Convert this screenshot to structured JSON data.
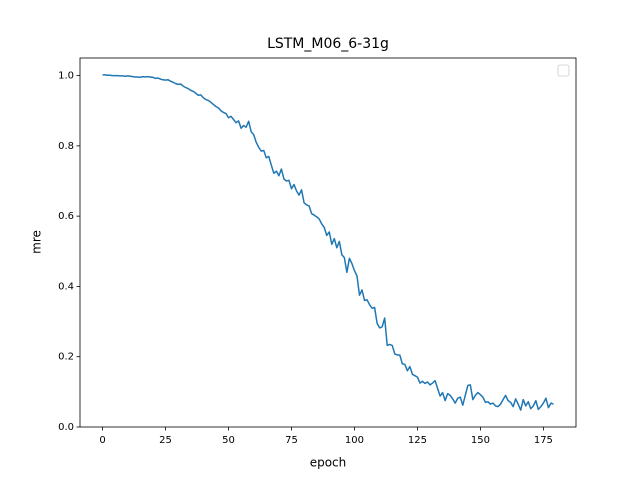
{
  "chart_data": {
    "type": "line",
    "title": "LSTM_M06_6-31g",
    "xlabel": "epoch",
    "ylabel": "mre",
    "x": [
      0,
      1,
      2,
      3,
      4,
      5,
      6,
      7,
      8,
      9,
      10,
      11,
      12,
      13,
      14,
      15,
      16,
      17,
      18,
      19,
      20,
      21,
      22,
      23,
      24,
      25,
      26,
      27,
      28,
      29,
      30,
      31,
      32,
      33,
      34,
      35,
      36,
      37,
      38,
      39,
      40,
      41,
      42,
      43,
      44,
      45,
      46,
      47,
      48,
      49,
      50,
      51,
      52,
      53,
      54,
      55,
      56,
      57,
      58,
      59,
      60,
      61,
      62,
      63,
      64,
      65,
      66,
      67,
      68,
      69,
      70,
      71,
      72,
      73,
      74,
      75,
      76,
      77,
      78,
      79,
      80,
      81,
      82,
      83,
      84,
      85,
      86,
      87,
      88,
      89,
      90,
      91,
      92,
      93,
      94,
      95,
      96,
      97,
      98,
      99,
      100,
      101,
      102,
      103,
      104,
      105,
      106,
      107,
      108,
      109,
      110,
      111,
      112,
      113,
      114,
      115,
      116,
      117,
      118,
      119,
      120,
      121,
      122,
      123,
      124,
      125,
      126,
      127,
      128,
      129,
      130,
      131,
      132,
      133,
      134,
      135,
      136,
      137,
      138,
      139,
      140,
      141,
      142,
      143,
      144,
      145,
      146,
      147,
      148,
      149,
      150,
      151,
      152,
      153,
      154,
      155,
      156,
      157,
      158,
      159,
      160,
      161,
      162,
      163,
      164,
      165,
      166,
      167,
      168,
      169,
      170,
      171,
      172,
      173,
      174,
      175,
      176,
      177,
      178,
      179
    ],
    "series": [
      {
        "color": "#1f77b4",
        "values": [
          1.002,
          1.002,
          1.001,
          1.001,
          1.0,
          1.0,
          1.0,
          0.999,
          0.999,
          0.998,
          0.999,
          0.998,
          0.997,
          0.996,
          0.996,
          0.995,
          0.997,
          0.996,
          0.997,
          0.996,
          0.995,
          0.992,
          0.993,
          0.99,
          0.988,
          0.987,
          0.988,
          0.984,
          0.981,
          0.977,
          0.975,
          0.976,
          0.97,
          0.966,
          0.963,
          0.958,
          0.955,
          0.95,
          0.944,
          0.945,
          0.937,
          0.932,
          0.929,
          0.924,
          0.918,
          0.912,
          0.908,
          0.9,
          0.895,
          0.892,
          0.88,
          0.884,
          0.875,
          0.866,
          0.871,
          0.85,
          0.858,
          0.853,
          0.87,
          0.84,
          0.832,
          0.81,
          0.796,
          0.785,
          0.787,
          0.766,
          0.77,
          0.745,
          0.722,
          0.728,
          0.715,
          0.734,
          0.706,
          0.7,
          0.702,
          0.678,
          0.69,
          0.672,
          0.66,
          0.675,
          0.638,
          0.632,
          0.629,
          0.607,
          0.603,
          0.598,
          0.592,
          0.578,
          0.568,
          0.545,
          0.555,
          0.52,
          0.536,
          0.51,
          0.528,
          0.49,
          0.482,
          0.44,
          0.48,
          0.465,
          0.445,
          0.43,
          0.375,
          0.39,
          0.36,
          0.362,
          0.348,
          0.338,
          0.34,
          0.295,
          0.282,
          0.285,
          0.31,
          0.232,
          0.235,
          0.232,
          0.208,
          0.205,
          0.205,
          0.18,
          0.178,
          0.16,
          0.172,
          0.15,
          0.146,
          0.142,
          0.125,
          0.13,
          0.124,
          0.128,
          0.12,
          0.125,
          0.132,
          0.11,
          0.088,
          0.098,
          0.075,
          0.095,
          0.09,
          0.08,
          0.068,
          0.082,
          0.085,
          0.062,
          0.09,
          0.118,
          0.12,
          0.078,
          0.09,
          0.098,
          0.092,
          0.085,
          0.07,
          0.072,
          0.065,
          0.068,
          0.06,
          0.058,
          0.065,
          0.078,
          0.09,
          0.075,
          0.07,
          0.058,
          0.08,
          0.065,
          0.048,
          0.078,
          0.06,
          0.072,
          0.052,
          0.06,
          0.075,
          0.05,
          0.058,
          0.068,
          0.082,
          0.055,
          0.068,
          0.065
        ]
      }
    ],
    "xlim": [
      -8.95,
      187.95
    ],
    "xticks": [
      0,
      25,
      50,
      75,
      100,
      125,
      150,
      175
    ],
    "ylim": [
      0.0,
      1.05
    ],
    "yticks": [
      {
        "value": 0,
        "label": "0.0"
      },
      0.2,
      0.4,
      0.6,
      0.8,
      {
        "value": 1,
        "label": "1.0"
      }
    ],
    "grid": false,
    "legend": "upper right"
  }
}
